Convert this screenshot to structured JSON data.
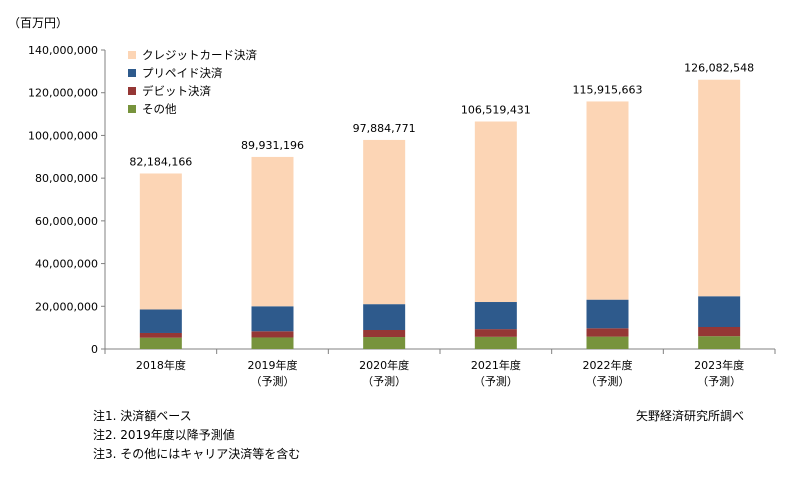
{
  "unit_label": "（百万円）",
  "chart_data": {
    "type": "bar",
    "stacked": true,
    "categories": [
      "2018年度",
      "2019年度",
      "2020年度",
      "2021年度",
      "2022年度",
      "2023年度"
    ],
    "category_sub": [
      "",
      "（予測）",
      "（予測）",
      "（予測）",
      "（予測）",
      "（予測）"
    ],
    "series": [
      {
        "name": "その他",
        "color": "#77933c",
        "values": [
          5300000,
          5400000,
          5600000,
          5700000,
          5800000,
          6000000
        ]
      },
      {
        "name": "デビット決済",
        "color": "#953735",
        "values": [
          2200000,
          2900000,
          3300000,
          3600000,
          3900000,
          4300000
        ]
      },
      {
        "name": "プリペイド決済",
        "color": "#2e5a8c",
        "values": [
          11000000,
          11700000,
          12100000,
          12700000,
          13400000,
          14400000
        ]
      },
      {
        "name": "クレジットカード決済",
        "color": "#fcd5b5",
        "values": [
          63684166,
          69931196,
          76884771,
          84519431,
          92815663,
          101382548
        ]
      }
    ],
    "totals": [
      82184166,
      89931196,
      97884771,
      106519431,
      115915663,
      126082548
    ],
    "total_labels": [
      "82,184,166",
      "89,931,196",
      "97,884,771",
      "106,519,431",
      "115,915,663",
      "126,082,548"
    ],
    "ylim": [
      0,
      140000000
    ],
    "yticks": [
      0,
      20000000,
      40000000,
      60000000,
      80000000,
      100000000,
      120000000,
      140000000
    ],
    "ytick_labels": [
      "0",
      "20,000,000",
      "40,000,000",
      "60,000,000",
      "80,000,000",
      "100,000,000",
      "120,000,000",
      "140,000,000"
    ],
    "legend": [
      {
        "label": "クレジットカード決済",
        "color": "#fcd5b5"
      },
      {
        "label": "プリペイド決済",
        "color": "#2e5a8c"
      },
      {
        "label": "デビット決済",
        "color": "#953735"
      },
      {
        "label": "その他",
        "color": "#77933c"
      }
    ],
    "legend_position": "top-left"
  },
  "notes": [
    "注1. 決済額ベース",
    "注2. 2019年度以降予測値",
    "注3. その他にはキャリア決済等を含む"
  ],
  "source": "矢野経済研究所調べ"
}
